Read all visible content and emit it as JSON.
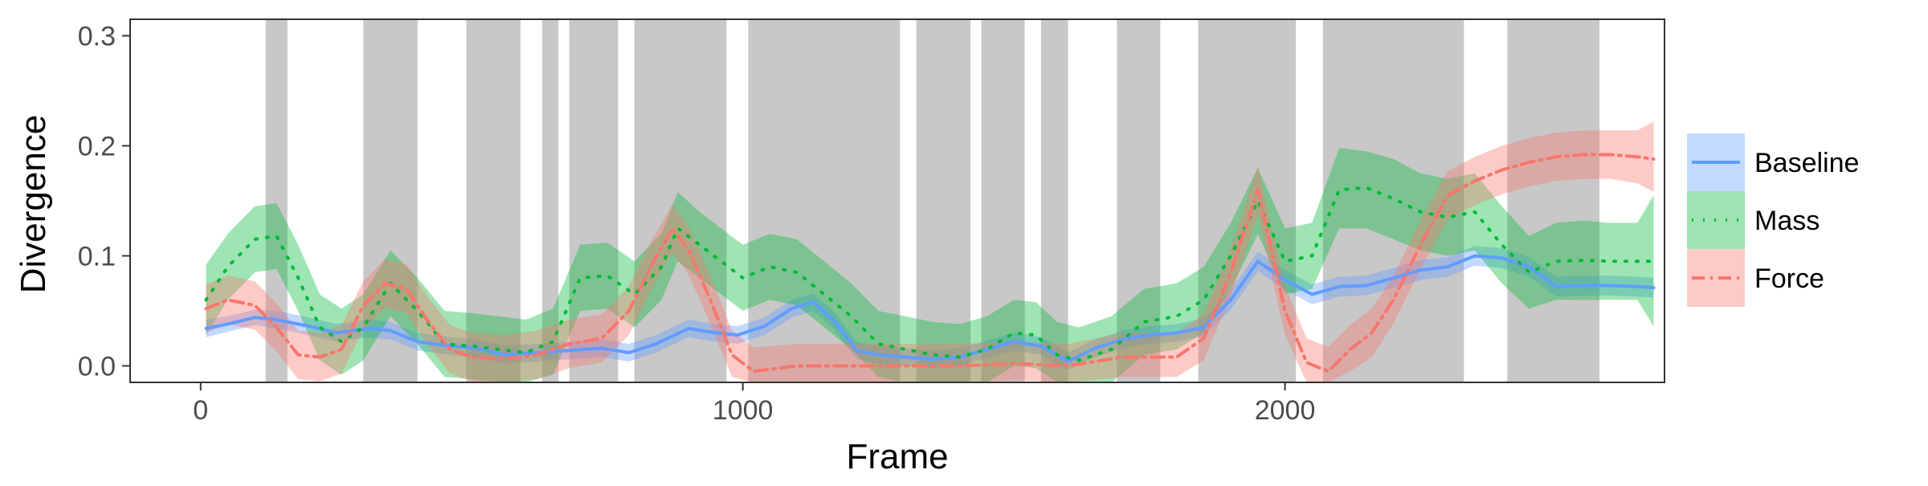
{
  "chart_data": {
    "type": "line",
    "title": "",
    "xlabel": "Frame",
    "ylabel": "Divergence",
    "xlim": [
      -130,
      2700
    ],
    "ylim": [
      -0.015,
      0.315
    ],
    "xticks": [
      0,
      1000,
      2000
    ],
    "xtick_labels": [
      "0",
      "1000",
      "2000"
    ],
    "yticks": [
      0.0,
      0.1,
      0.2,
      0.3
    ],
    "ytick_labels": [
      "0.0",
      "0.1",
      "0.2",
      "0.3"
    ],
    "grid": false,
    "legend_position": "right",
    "shaded_regions": [
      [
        120,
        160
      ],
      [
        300,
        400
      ],
      [
        490,
        590
      ],
      [
        630,
        660
      ],
      [
        680,
        770
      ],
      [
        800,
        970
      ],
      [
        1010,
        1290
      ],
      [
        1320,
        1420
      ],
      [
        1440,
        1520
      ],
      [
        1550,
        1600
      ],
      [
        1690,
        1770
      ],
      [
        1840,
        2020
      ],
      [
        2070,
        2330
      ],
      [
        2410,
        2580
      ]
    ],
    "series": [
      {
        "name": "Baseline",
        "color": "#619CFF",
        "band_color": "#619CFF",
        "dash": "",
        "x": [
          10,
          50,
          100,
          140,
          200,
          250,
          310,
          350,
          400,
          460,
          510,
          560,
          620,
          680,
          740,
          790,
          840,
          900,
          950,
          990,
          1040,
          1090,
          1130,
          1170,
          1210,
          1250,
          1300,
          1350,
          1400,
          1450,
          1500,
          1550,
          1600,
          1650,
          1700,
          1750,
          1800,
          1850,
          1900,
          1950,
          2000,
          2050,
          2100,
          2150,
          2200,
          2250,
          2300,
          2350,
          2400,
          2450,
          2500,
          2550,
          2600,
          2650,
          2680
        ],
        "y": [
          0.034,
          0.038,
          0.044,
          0.042,
          0.036,
          0.03,
          0.034,
          0.032,
          0.022,
          0.018,
          0.016,
          0.01,
          0.012,
          0.014,
          0.016,
          0.012,
          0.02,
          0.034,
          0.03,
          0.028,
          0.036,
          0.052,
          0.058,
          0.04,
          0.014,
          0.01,
          0.008,
          0.006,
          0.008,
          0.015,
          0.022,
          0.018,
          0.004,
          0.016,
          0.024,
          0.028,
          0.03,
          0.035,
          0.06,
          0.095,
          0.078,
          0.065,
          0.072,
          0.073,
          0.08,
          0.087,
          0.09,
          0.1,
          0.098,
          0.09,
          0.072,
          0.073,
          0.073,
          0.072,
          0.071
        ],
        "lower": [
          0.026,
          0.031,
          0.037,
          0.034,
          0.028,
          0.022,
          0.026,
          0.024,
          0.014,
          0.01,
          0.008,
          0.002,
          0.004,
          0.006,
          0.008,
          0.004,
          0.012,
          0.026,
          0.022,
          0.02,
          0.028,
          0.044,
          0.05,
          0.032,
          0.006,
          0.002,
          0.0,
          -0.002,
          0.0,
          0.007,
          0.014,
          0.01,
          -0.004,
          0.008,
          0.016,
          0.02,
          0.022,
          0.027,
          0.051,
          0.086,
          0.069,
          0.056,
          0.063,
          0.064,
          0.071,
          0.078,
          0.081,
          0.091,
          0.089,
          0.081,
          0.063,
          0.064,
          0.064,
          0.063,
          0.062
        ],
        "upper": [
          0.042,
          0.045,
          0.051,
          0.05,
          0.044,
          0.038,
          0.042,
          0.04,
          0.03,
          0.026,
          0.024,
          0.018,
          0.02,
          0.022,
          0.024,
          0.02,
          0.028,
          0.042,
          0.038,
          0.036,
          0.044,
          0.06,
          0.066,
          0.048,
          0.022,
          0.018,
          0.016,
          0.014,
          0.016,
          0.023,
          0.03,
          0.026,
          0.012,
          0.024,
          0.032,
          0.036,
          0.038,
          0.043,
          0.069,
          0.104,
          0.087,
          0.074,
          0.081,
          0.082,
          0.089,
          0.096,
          0.099,
          0.109,
          0.107,
          0.099,
          0.081,
          0.082,
          0.082,
          0.081,
          0.08
        ]
      },
      {
        "name": "Mass",
        "color": "#00BA38",
        "band_color": "#00BA38",
        "dash": "2 12",
        "x": [
          10,
          50,
          100,
          140,
          180,
          220,
          260,
          300,
          350,
          400,
          450,
          500,
          550,
          600,
          650,
          700,
          750,
          800,
          850,
          880,
          920,
          960,
          1000,
          1050,
          1100,
          1150,
          1200,
          1250,
          1300,
          1350,
          1400,
          1450,
          1500,
          1540,
          1580,
          1620,
          1680,
          1740,
          1800,
          1850,
          1900,
          1950,
          2000,
          2050,
          2100,
          2150,
          2200,
          2250,
          2300,
          2350,
          2400,
          2450,
          2500,
          2550,
          2600,
          2650,
          2680
        ],
        "y": [
          0.06,
          0.09,
          0.115,
          0.118,
          0.08,
          0.035,
          0.022,
          0.035,
          0.075,
          0.05,
          0.02,
          0.018,
          0.015,
          0.012,
          0.022,
          0.08,
          0.082,
          0.065,
          0.09,
          0.125,
          0.11,
          0.095,
          0.08,
          0.09,
          0.085,
          0.065,
          0.045,
          0.02,
          0.015,
          0.01,
          0.008,
          0.015,
          0.03,
          0.028,
          0.01,
          0.005,
          0.015,
          0.04,
          0.045,
          0.06,
          0.1,
          0.15,
          0.095,
          0.1,
          0.16,
          0.162,
          0.152,
          0.14,
          0.135,
          0.14,
          0.11,
          0.085,
          0.095,
          0.096,
          0.095,
          0.095,
          0.095
        ],
        "lower": [
          0.028,
          0.06,
          0.085,
          0.088,
          0.05,
          0.005,
          -0.008,
          0.005,
          0.045,
          0.02,
          -0.01,
          -0.012,
          -0.015,
          -0.018,
          -0.008,
          0.05,
          0.052,
          0.035,
          0.06,
          0.095,
          0.08,
          0.065,
          0.05,
          0.06,
          0.055,
          0.035,
          0.015,
          -0.01,
          -0.015,
          -0.02,
          -0.022,
          -0.015,
          0.0,
          -0.002,
          -0.02,
          -0.025,
          -0.015,
          0.01,
          0.015,
          0.03,
          0.07,
          0.12,
          0.065,
          0.07,
          0.125,
          0.125,
          0.115,
          0.105,
          0.1,
          0.105,
          0.075,
          0.052,
          0.06,
          0.06,
          0.06,
          0.06,
          0.036
        ],
        "upper": [
          0.092,
          0.12,
          0.145,
          0.148,
          0.11,
          0.065,
          0.052,
          0.065,
          0.105,
          0.08,
          0.05,
          0.048,
          0.045,
          0.042,
          0.052,
          0.11,
          0.112,
          0.095,
          0.12,
          0.158,
          0.14,
          0.125,
          0.11,
          0.12,
          0.115,
          0.095,
          0.075,
          0.05,
          0.045,
          0.04,
          0.038,
          0.045,
          0.06,
          0.058,
          0.04,
          0.035,
          0.045,
          0.07,
          0.075,
          0.09,
          0.13,
          0.18,
          0.125,
          0.13,
          0.198,
          0.195,
          0.188,
          0.175,
          0.17,
          0.175,
          0.145,
          0.118,
          0.13,
          0.132,
          0.13,
          0.13,
          0.155
        ]
      },
      {
        "name": "Force",
        "color": "#F8766D",
        "band_color": "#F8766D",
        "dash": "16 7 3 7",
        "x": [
          10,
          50,
          100,
          140,
          180,
          220,
          260,
          300,
          340,
          380,
          420,
          460,
          500,
          560,
          620,
          680,
          740,
          790,
          830,
          870,
          900,
          940,
          980,
          1020,
          1100,
          1200,
          1300,
          1400,
          1500,
          1600,
          1700,
          1800,
          1850,
          1900,
          1950,
          2000,
          2040,
          2080,
          2120,
          2160,
          2200,
          2250,
          2300,
          2350,
          2400,
          2450,
          2500,
          2550,
          2600,
          2650,
          2680
        ],
        "y": [
          0.052,
          0.06,
          0.055,
          0.035,
          0.01,
          0.008,
          0.015,
          0.055,
          0.075,
          0.07,
          0.04,
          0.015,
          0.008,
          0.006,
          0.01,
          0.02,
          0.025,
          0.05,
          0.09,
          0.125,
          0.105,
          0.06,
          0.01,
          -0.005,
          0.0,
          0.0,
          0.0,
          0.0,
          0.002,
          0.0,
          0.008,
          0.008,
          0.025,
          0.085,
          0.16,
          0.05,
          0.003,
          -0.005,
          0.015,
          0.03,
          0.06,
          0.11,
          0.155,
          0.168,
          0.178,
          0.185,
          0.19,
          0.192,
          0.192,
          0.19,
          0.188
        ],
        "lower": [
          0.03,
          0.038,
          0.033,
          0.013,
          -0.012,
          -0.014,
          -0.007,
          0.033,
          0.053,
          0.048,
          0.018,
          -0.007,
          -0.014,
          -0.016,
          -0.012,
          -0.002,
          0.003,
          0.028,
          0.068,
          0.103,
          0.083,
          0.038,
          -0.01,
          -0.02,
          -0.015,
          -0.015,
          -0.015,
          -0.015,
          -0.013,
          -0.015,
          -0.01,
          -0.01,
          0.005,
          0.063,
          0.138,
          0.028,
          -0.019,
          -0.025,
          -0.005,
          0.008,
          0.038,
          0.088,
          0.133,
          0.146,
          0.156,
          0.163,
          0.168,
          0.17,
          0.17,
          0.166,
          0.158
        ],
        "upper": [
          0.074,
          0.082,
          0.077,
          0.057,
          0.032,
          0.03,
          0.037,
          0.077,
          0.097,
          0.092,
          0.062,
          0.037,
          0.03,
          0.028,
          0.032,
          0.042,
          0.047,
          0.072,
          0.112,
          0.147,
          0.127,
          0.082,
          0.032,
          0.017,
          0.02,
          0.02,
          0.02,
          0.02,
          0.022,
          0.02,
          0.03,
          0.03,
          0.047,
          0.107,
          0.182,
          0.072,
          0.025,
          0.017,
          0.037,
          0.052,
          0.082,
          0.132,
          0.177,
          0.19,
          0.2,
          0.207,
          0.212,
          0.214,
          0.214,
          0.214,
          0.222
        ]
      }
    ]
  }
}
